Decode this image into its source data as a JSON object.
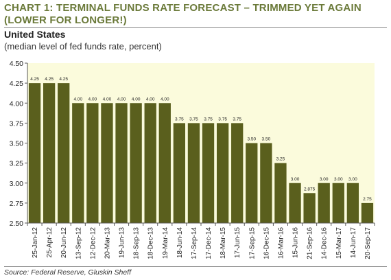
{
  "title_line1": "CHART 1: TERMINAL FUNDS RATE FORECAST – TRIMMED YET AGAIN",
  "title_line2": "(LOWER FOR LONGER!)",
  "subtitle": "United States",
  "subnote": "(median level of fed funds rate, percent)",
  "source": "Source: Federal Reserve, Gluskin Sheff",
  "colors": {
    "bar": "#5a5f1d",
    "plot_bg": "#fbfbdc",
    "title": "#6b7a3a"
  },
  "chart_data": {
    "type": "bar",
    "categories": [
      "25-Jan-12",
      "25-Apr-12",
      "20-Jun-12",
      "13-Sep-12",
      "12-Dec-12",
      "20-Mar-13",
      "19-Jun-13",
      "18-Sep-13",
      "18-Dec-13",
      "19-Mar-14",
      "18-Jun-14",
      "17-Sep-14",
      "17-Dec-14",
      "18-Mar-15",
      "17-Jun-15",
      "17-Sep-15",
      "16-Dec-15",
      "16-Mar-16",
      "15-Jun-16",
      "21-Sep-16",
      "14-Dec-16",
      "15-Mar-17",
      "14-Jun-17",
      "20-Sep-17"
    ],
    "values": [
      4.25,
      4.25,
      4.25,
      4.0,
      4.0,
      4.0,
      4.0,
      4.0,
      4.0,
      4.0,
      3.75,
      3.75,
      3.75,
      3.75,
      3.75,
      3.5,
      3.5,
      3.25,
      3.0,
      2.875,
      3.0,
      3.0,
      3.0,
      2.75
    ],
    "data_labels": [
      "4.25",
      "4.25",
      "4.25",
      "4.00",
      "4.00",
      "4.00",
      "4.00",
      "4.00",
      "4.00",
      "4.00",
      "3.75",
      "3.75",
      "3.75",
      "3.75",
      "3.75",
      "3.50",
      "3.50",
      "3.25",
      "3.00",
      "2.875",
      "3.00",
      "3.00",
      "3.00",
      "2.75"
    ],
    "y_ticks": [
      "2.50",
      "2.75",
      "3.00",
      "3.25",
      "3.50",
      "3.75",
      "4.00",
      "4.25",
      "4.50"
    ],
    "ylim": [
      2.5,
      4.5
    ],
    "grid": false
  }
}
